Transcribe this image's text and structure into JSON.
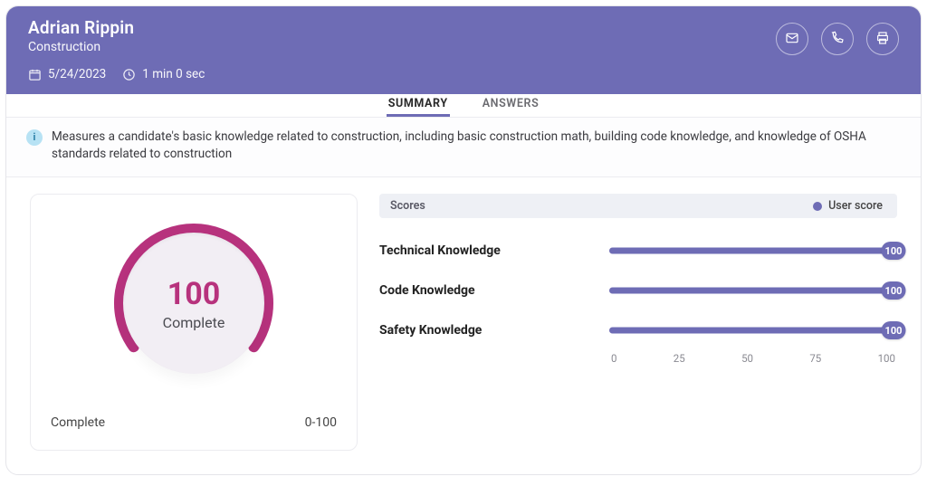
{
  "colors": {
    "header_bg": "#6e6cb5",
    "accent": "#6e6cb5",
    "gauge_arc": "#b7327d",
    "gauge_arc_bg": "#e6e0ea",
    "gauge_face": "#f2eef4",
    "info_icon_bg": "#b7e2f4",
    "info_icon_fg": "#2a7fa6",
    "panel_bg": "#eef0f5",
    "bar_track": "#e8e6f3"
  },
  "header": {
    "name": "Adrian Rippin",
    "role": "Construction",
    "date": "5/24/2023",
    "duration": "1 min 0 sec",
    "actions": {
      "email_icon": "email-icon",
      "phone_icon": "phone-icon",
      "print_icon": "print-icon"
    }
  },
  "tabs": {
    "summary": "SUMMARY",
    "answers": "ANSWERS",
    "active": "summary"
  },
  "info": {
    "text": "Measures a candidate's basic knowledge related to construction, including basic construction math, building code knowledge, and knowledge of OSHA standards related to construction"
  },
  "gauge": {
    "score": 100,
    "max": 100,
    "start_deg": -216,
    "sweep_deg": 252,
    "label": "Complete",
    "footer_left": "Complete",
    "footer_right": "0-100"
  },
  "scores": {
    "header": "Scores",
    "legend_label": "User score",
    "legend_color": "#6e6cb5",
    "axis_min": 0,
    "axis_max": 100,
    "axis_step": 25,
    "bar_color": "#6e6cb5",
    "items": [
      {
        "name": "Technical Knowledge",
        "value": 100
      },
      {
        "name": "Code Knowledge",
        "value": 100
      },
      {
        "name": "Safety Knowledge",
        "value": 100
      }
    ]
  }
}
